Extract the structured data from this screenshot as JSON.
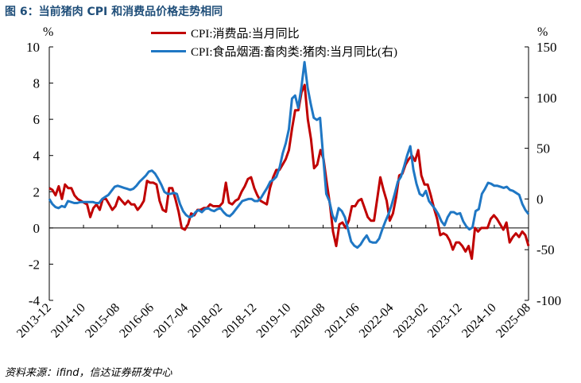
{
  "figure": {
    "title": "图 6：当前猪肉 CPI 和消费品价格走势相同",
    "unit_left": "%",
    "unit_right": "%",
    "source": "资料来源：ifind，信达证券研发中心"
  },
  "colors": {
    "series_left": "#c00000",
    "series_right": "#1f77c4",
    "title": "#1f4e79"
  },
  "chart_data": {
    "type": "line",
    "title": "",
    "legend_position": "top-center",
    "grid": false,
    "x_tick_labels": [
      "2013-12",
      "2014-10",
      "2015-08",
      "2016-06",
      "2017-04",
      "2018-02",
      "2018-12",
      "2019-10",
      "2020-08",
      "2021-06",
      "2022-04",
      "2023-02",
      "2023-12",
      "2024-10",
      "2025-08"
    ],
    "y_left": {
      "range": [
        -4,
        10
      ],
      "ticks": [
        "-4",
        "-2",
        "0",
        "2",
        "4",
        "6",
        "8",
        "10"
      ]
    },
    "y_right": {
      "range": [
        -100,
        150
      ],
      "ticks": [
        "-100",
        "-50",
        "0",
        "50",
        "100",
        "150"
      ]
    },
    "series": [
      {
        "name": "CPI:消费品:当月同比",
        "axis": "left",
        "color": "#c00000",
        "values": [
          2.2,
          2.1,
          1.8,
          2.3,
          1.6,
          2.4,
          2.2,
          2.2,
          1.8,
          1.6,
          1.5,
          1.4,
          1.3,
          0.6,
          1.1,
          1.3,
          1.0,
          1.6,
          1.6,
          1.3,
          1.0,
          1.2,
          1.7,
          1.5,
          1.3,
          1.5,
          1.3,
          1.3,
          1.0,
          1.2,
          1.5,
          2.6,
          2.5,
          2.5,
          2.4,
          1.5,
          1.0,
          0.9,
          2.2,
          2.2,
          1.6,
          0.9,
          0.0,
          -0.1,
          0.2,
          0.8,
          0.7,
          1.0,
          1.0,
          1.1,
          1.1,
          1.3,
          1.2,
          1.2,
          1.2,
          1.4,
          2.5,
          1.4,
          1.3,
          1.5,
          1.6,
          2.0,
          2.3,
          2.7,
          2.8,
          2.2,
          1.8,
          1.5,
          1.4,
          1.3,
          2.2,
          2.8,
          3.2,
          3.2,
          3.5,
          3.8,
          4.3,
          5.5,
          6.5,
          6.5,
          7.5,
          7.9,
          6.0,
          4.9,
          3.3,
          3.5,
          4.3,
          3.8,
          2.5,
          1.3,
          -0.2,
          -1.0,
          0.2,
          0.3,
          0.0,
          0.4,
          1.2,
          1.2,
          1.5,
          1.6,
          1.1,
          0.6,
          0.4,
          0.4,
          1.6,
          2.8,
          2.1,
          1.5,
          0.4,
          0.8,
          1.7,
          2.9,
          3.0,
          3.5,
          3.8,
          4.0,
          3.7,
          4.3,
          2.9,
          2.4,
          2.4,
          1.8,
          1.1,
          0.5,
          -0.4,
          -0.3,
          -0.4,
          -0.7,
          -1.2,
          -0.8,
          -0.8,
          -1.0,
          -1.3,
          -1.0,
          -1.7,
          0.0,
          -0.2,
          0.0,
          0.0,
          0.0,
          0.5,
          0.7,
          0.5,
          0.2,
          -0.1,
          0.3,
          -0.8,
          -0.5,
          -0.3,
          -0.5,
          -0.2,
          -0.4,
          -1.0
        ]
      },
      {
        "name": "CPI:食品烟酒:畜肉类:猪肉:当月同比(右)",
        "axis": "right",
        "color": "#1f77c4",
        "values": [
          0,
          -5,
          -8,
          -9,
          -7,
          -8,
          -2,
          -3,
          -4,
          -4,
          -3,
          -3,
          -3,
          -3,
          -3,
          -4,
          -4,
          0,
          2,
          4,
          8,
          12,
          13,
          12,
          11,
          10,
          9,
          10,
          13,
          17,
          20,
          23,
          27,
          28,
          25,
          20,
          14,
          7,
          5,
          5,
          6,
          5,
          -5,
          -12,
          -16,
          -18,
          -17,
          -13,
          -11,
          -13,
          -10,
          -9,
          -11,
          -12,
          -10,
          -9,
          -13,
          -16,
          -17,
          -14,
          -10,
          -6,
          -2,
          -1,
          0,
          0,
          -2,
          -2,
          1,
          6,
          11,
          17,
          19,
          22,
          31,
          45,
          55,
          69,
          99,
          102,
          90,
          110,
          135,
          110,
          94,
          80,
          78,
          80,
          42,
          5,
          -2,
          -16,
          -22,
          -9,
          -12,
          -18,
          -30,
          -42,
          -46,
          -48,
          -45,
          -40,
          -36,
          -42,
          -43,
          -43,
          -39,
          -30,
          -22,
          -15,
          -6,
          5,
          17,
          22,
          32,
          43,
          52,
          29,
          15,
          5,
          3,
          8,
          -2,
          -6,
          -10,
          -15,
          -22,
          -26,
          -18,
          -13,
          -13,
          -15,
          -14,
          -22,
          -27,
          -30,
          -28,
          -12,
          -10,
          5,
          10,
          16,
          15,
          13,
          13,
          12,
          11,
          12,
          9,
          8,
          6,
          4,
          -5,
          -11,
          -15
        ]
      }
    ]
  }
}
